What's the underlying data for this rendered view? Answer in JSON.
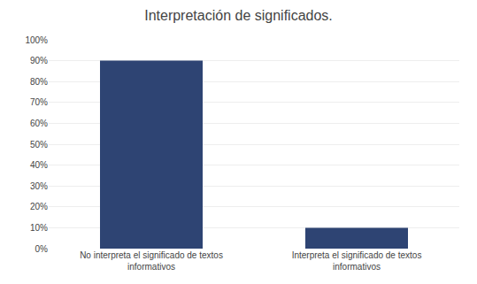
{
  "chart_data": {
    "type": "bar",
    "title": "Interpretación de significados.",
    "categories": [
      "No interpreta el significado de textos\ninformativos",
      "Interpreta el significado de textos\ninformativos"
    ],
    "values": [
      0.9,
      0.1
    ],
    "color": "#2E4473",
    "ylim": [
      0,
      1.0
    ],
    "yticks": [
      {
        "value": 0.0,
        "label": "0%"
      },
      {
        "value": 0.1,
        "label": "10%"
      },
      {
        "value": 0.2,
        "label": "20%"
      },
      {
        "value": 0.3,
        "label": "30%"
      },
      {
        "value": 0.4,
        "label": "40%"
      },
      {
        "value": 0.5,
        "label": "50%"
      },
      {
        "value": 0.6,
        "label": "60%"
      },
      {
        "value": 0.7,
        "label": "70%"
      },
      {
        "value": 0.8,
        "label": "80%"
      },
      {
        "value": 0.9,
        "label": "90%"
      },
      {
        "value": 1.0,
        "label": "100%"
      }
    ],
    "grid": true
  }
}
